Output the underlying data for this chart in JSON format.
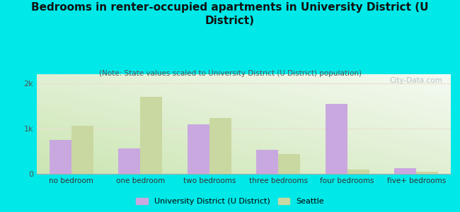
{
  "title": "Bedrooms in renter-occupied apartments in University District (U\nDistrict)",
  "subtitle": "(Note: State values scaled to University District (U District) population)",
  "categories": [
    "no bedroom",
    "one bedroom",
    "two bedrooms",
    "three bedrooms",
    "four bedrooms",
    "five+ bedrooms"
  ],
  "udistrict_values": [
    750,
    560,
    1100,
    530,
    1550,
    120
  ],
  "seattle_values": [
    1060,
    1700,
    1230,
    430,
    100,
    50
  ],
  "udistrict_color": "#c9a8e0",
  "seattle_color": "#c8d8a0",
  "background_outer": "#00e8e8",
  "background_plot_bottom": "#d0e8b0",
  "background_plot_top": "#f5faf0",
  "ylim": [
    0,
    2200
  ],
  "ytick_labels": [
    "0",
    "1k",
    "2k"
  ],
  "ytick_vals": [
    0,
    1000,
    2000
  ],
  "watermark": "City-Data.com",
  "legend_udistrict": "University District (U District)",
  "legend_seattle": "Seattle",
  "bar_width": 0.32,
  "title_fontsize": 11,
  "subtitle_fontsize": 7.5
}
